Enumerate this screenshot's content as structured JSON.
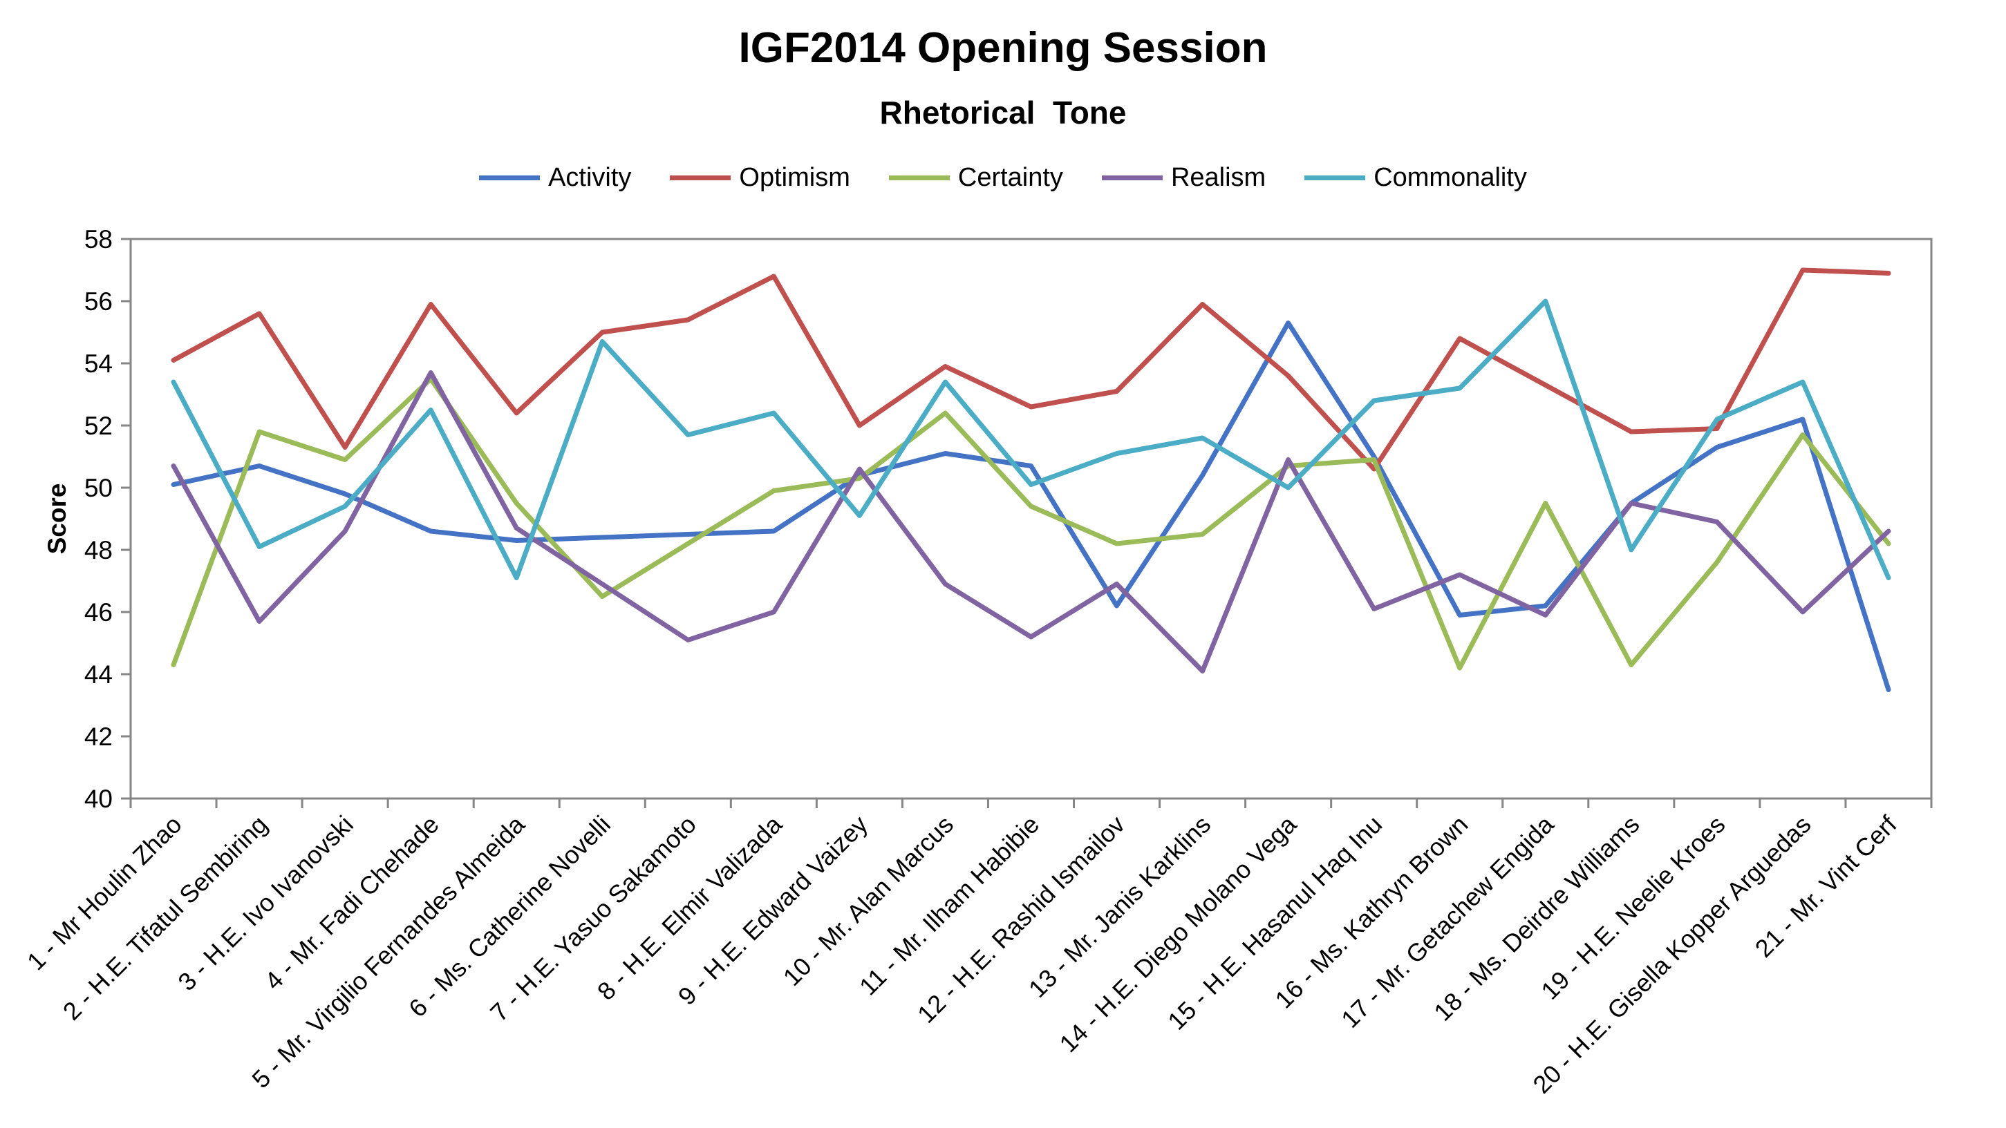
{
  "chart_data": {
    "type": "line",
    "title": "IGF2014 Opening Session",
    "subtitle": "Rhetorical  Tone",
    "xlabel": "",
    "ylabel": "Score",
    "ylim": [
      40,
      58
    ],
    "yticks": [
      40,
      42,
      44,
      46,
      48,
      50,
      52,
      54,
      56,
      58
    ],
    "grid": false,
    "legend_position": "top",
    "categories": [
      "1 - Mr Houlin Zhao",
      "2 - H.E. Tifatul Sembiring",
      "3 - H.E. Ivo Ivanovski",
      "4 - Mr. Fadi Chehade",
      "5 - Mr. Virgilio Fernandes Almeida",
      "6 - Ms. Catherine Novelli",
      "7 - H.E. Yasuo Sakamoto",
      "8 - H.E. Elmir Valizada",
      "9 - H.E. Edward Vaizey",
      "10 - Mr. Alan Marcus",
      "11 - Mr. Ilham Habibie",
      "12 - H.E. Rashid Ismailov",
      "13 - Mr. Janis Karklins",
      "14 - H.E. Diego Molano Vega",
      "15 - H.E. Hasanul Haq Inu",
      "16 - Ms. Kathryn Brown",
      "17 - Mr. Getachew Engida",
      "18 - Ms. Deirdre Williams",
      "19 - H.E. Neelie Kroes",
      "20 - H.E. Gisella Kopper Arguedas",
      "21 - Mr. Vint Cerf"
    ],
    "series": [
      {
        "name": "Activity",
        "color": "#4472C4",
        "values": [
          50.1,
          50.7,
          49.8,
          48.6,
          48.3,
          48.4,
          48.5,
          48.6,
          50.4,
          51.1,
          50.7,
          46.2,
          50.4,
          55.3,
          51.0,
          45.9,
          46.2,
          49.5,
          51.3,
          52.2,
          43.5
        ]
      },
      {
        "name": "Optimism",
        "color": "#C0504D",
        "values": [
          54.1,
          55.6,
          51.3,
          55.9,
          52.4,
          55.0,
          55.4,
          56.8,
          52.0,
          53.9,
          52.6,
          53.1,
          55.9,
          53.6,
          50.6,
          54.8,
          53.3,
          51.8,
          51.9,
          57.0,
          56.9
        ]
      },
      {
        "name": "Certainty",
        "color": "#9BBB59",
        "values": [
          44.3,
          51.8,
          50.9,
          53.5,
          49.5,
          46.5,
          48.2,
          49.9,
          50.3,
          52.4,
          49.4,
          48.2,
          48.5,
          50.7,
          50.9,
          44.2,
          49.5,
          44.3,
          47.6,
          51.7,
          48.2
        ]
      },
      {
        "name": "Realism",
        "color": "#8064A2",
        "values": [
          50.7,
          45.7,
          48.6,
          53.7,
          48.7,
          46.9,
          45.1,
          46.0,
          50.6,
          46.9,
          45.2,
          46.9,
          44.1,
          50.9,
          46.1,
          47.2,
          45.9,
          49.5,
          48.9,
          46.0,
          48.6
        ]
      },
      {
        "name": "Commonality",
        "color": "#4BACC6",
        "values": [
          53.4,
          48.1,
          49.4,
          52.5,
          47.1,
          54.7,
          51.7,
          52.4,
          49.1,
          53.4,
          50.1,
          51.1,
          51.6,
          50.0,
          52.8,
          53.2,
          56.0,
          48.0,
          52.2,
          53.4,
          47.1
        ]
      }
    ]
  }
}
